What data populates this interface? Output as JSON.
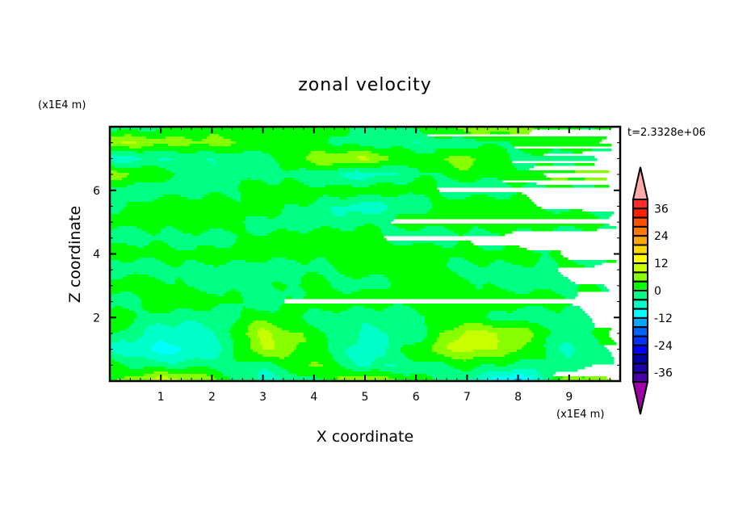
{
  "chart_data": {
    "type": "heatmap",
    "title": "zonal velocity",
    "xlabel": "X coordinate",
    "ylabel": "Z coordinate",
    "x_unit_label": "(x1E4 m)",
    "y_unit_label": "(x1E4 m)",
    "time_label": "t=2.3328e+06",
    "xlim": [
      0,
      10
    ],
    "ylim": [
      0,
      8
    ],
    "x_ticks": [
      1,
      2,
      3,
      4,
      5,
      6,
      7,
      8,
      9
    ],
    "y_ticks": [
      2,
      4,
      6
    ],
    "grid": false,
    "legend_placement": "right",
    "colorbar": {
      "labels": [
        "36",
        "24",
        "12",
        "0",
        "-12",
        "-24",
        "-36"
      ],
      "label_values": [
        36,
        24,
        12,
        0,
        -12,
        -24,
        -36
      ],
      "levels_min": -40,
      "levels_max": 40,
      "level_step": 4,
      "colors_high_to_low": [
        "#ff2a2a",
        "#ff2000",
        "#ff5000",
        "#ff7800",
        "#ffa800",
        "#ffd800",
        "#ffff00",
        "#c8ff00",
        "#88ff00",
        "#00ff00",
        "#00ff82",
        "#00ffc8",
        "#00ffff",
        "#00a8ff",
        "#0064ff",
        "#0032ff",
        "#0000ff",
        "#0000a8",
        "#1e00a8",
        "#4800a8"
      ],
      "over_color": "#ffaaaa",
      "under_color": "#a000a8"
    },
    "grid_x": [
      0,
      1,
      2,
      3,
      4,
      5,
      6,
      7,
      8,
      9,
      10
    ],
    "grid_z_top_to_bottom": [
      8,
      7.5,
      7,
      6.5,
      6,
      5.5,
      5,
      4.5,
      4,
      3.5,
      3,
      2.5,
      2,
      1.5,
      1,
      0.5,
      0
    ],
    "values": [
      [
        -2,
        -2,
        2,
        2,
        2,
        -2,
        2,
        6,
        6,
        2,
        -2
      ],
      [
        8,
        6,
        6,
        2,
        2,
        -2,
        -4,
        -2,
        2,
        2,
        6
      ],
      [
        -6,
        -4,
        -4,
        -2,
        6,
        8,
        2,
        6,
        -2,
        -2,
        -6
      ],
      [
        6,
        2,
        -2,
        -2,
        -2,
        -6,
        -2,
        2,
        2,
        6,
        6
      ],
      [
        -2,
        -2,
        -2,
        2,
        2,
        2,
        2,
        -2,
        -2,
        -2,
        -2
      ],
      [
        -2,
        2,
        2,
        2,
        -2,
        -6,
        -2,
        2,
        2,
        -2,
        -2
      ],
      [
        2,
        2,
        2,
        -2,
        -2,
        -2,
        2,
        2,
        2,
        2,
        2
      ],
      [
        -2,
        -2,
        -2,
        2,
        2,
        2,
        -2,
        -2,
        -2,
        -2,
        -2
      ],
      [
        2,
        2,
        2,
        2,
        2,
        2,
        2,
        2,
        2,
        -2,
        -2
      ],
      [
        -2,
        -2,
        -2,
        -2,
        -2,
        2,
        2,
        -2,
        -2,
        2,
        2
      ],
      [
        2,
        2,
        -2,
        -2,
        2,
        -2,
        2,
        2,
        -2,
        -2,
        2
      ],
      [
        -2,
        2,
        2,
        -2,
        2,
        2,
        2,
        2,
        2,
        2,
        2
      ],
      [
        2,
        -2,
        -2,
        2,
        -2,
        -2,
        -2,
        2,
        -2,
        -2,
        2
      ],
      [
        2,
        -6,
        -6,
        10,
        2,
        -6,
        -2,
        10,
        6,
        -2,
        6
      ],
      [
        -6,
        -10,
        -6,
        8,
        2,
        -6,
        2,
        10,
        6,
        -6,
        2
      ],
      [
        2,
        -2,
        -2,
        -2,
        6,
        -6,
        -2,
        2,
        -2,
        -2,
        2
      ],
      [
        2,
        10,
        6,
        -6,
        -2,
        10,
        2,
        -6,
        -14,
        8,
        2
      ]
    ]
  }
}
